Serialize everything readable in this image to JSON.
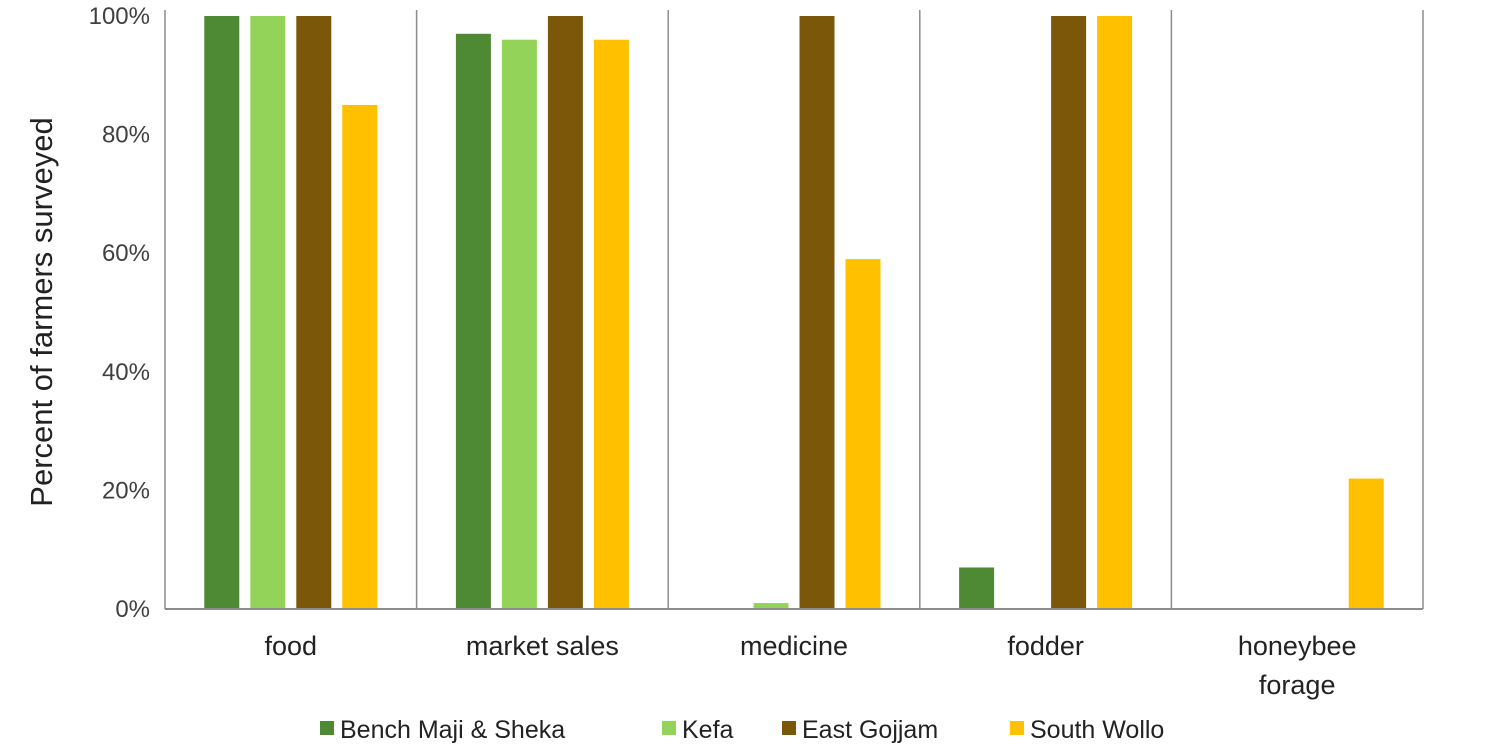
{
  "chart_data": {
    "type": "bar",
    "title": "",
    "xlabel": "",
    "ylabel": "Percent of farmers surveyed",
    "ylim": [
      0,
      100
    ],
    "yticks": [
      "0%",
      "20%",
      "40%",
      "60%",
      "80%",
      "100%"
    ],
    "ytick_values": [
      0,
      20,
      40,
      60,
      80,
      100
    ],
    "categories": [
      [
        "food"
      ],
      [
        "market sales"
      ],
      [
        "medicine"
      ],
      [
        "fodder"
      ],
      [
        "honeybee",
        "forage"
      ]
    ],
    "series": [
      {
        "name": "Bench Maji & Sheka",
        "color": "#4e8a34",
        "values": [
          100,
          97,
          0,
          7,
          0
        ]
      },
      {
        "name": "Kefa",
        "color": "#93d35a",
        "values": [
          100,
          96,
          1,
          0,
          0
        ]
      },
      {
        "name": "East Gojjam",
        "color": "#7a5709",
        "values": [
          100,
          100,
          100,
          100,
          0
        ]
      },
      {
        "name": "South Wollo",
        "color": "#ffc000",
        "values": [
          85,
          96,
          59,
          100,
          22
        ]
      }
    ],
    "legend_position": "bottom",
    "grid": false,
    "group_separators": true
  }
}
